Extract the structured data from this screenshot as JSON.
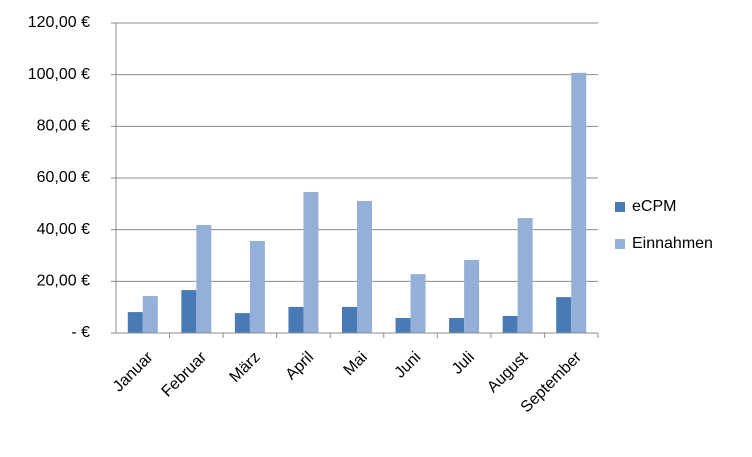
{
  "chart_data": {
    "type": "bar",
    "categories": [
      "Januar",
      "Februar",
      "März",
      "April",
      "Mai",
      "Juni",
      "Juli",
      "August",
      "September"
    ],
    "series": [
      {
        "name": "eCPM",
        "color": "#4a7ab5",
        "values": [
          8.1,
          16.6,
          7.7,
          10.1,
          10.1,
          5.8,
          5.8,
          6.6,
          13.9
        ]
      },
      {
        "name": "Einnahmen",
        "color": "#95b0d8",
        "values": [
          14.3,
          41.8,
          35.6,
          54.6,
          51.1,
          22.8,
          28.3,
          44.5,
          100.7
        ]
      }
    ],
    "ylim": [
      0,
      120
    ],
    "yticks": [
      {
        "value": 0,
        "label": "-   €"
      },
      {
        "value": 20,
        "label": "20,00 €"
      },
      {
        "value": 40,
        "label": "40,00 €"
      },
      {
        "value": 60,
        "label": "60,00 €"
      },
      {
        "value": 80,
        "label": "80,00 €"
      },
      {
        "value": 100,
        "label": "100,00 €"
      },
      {
        "value": 120,
        "label": "120,00 €"
      }
    ],
    "grid": true,
    "legend": "right"
  }
}
